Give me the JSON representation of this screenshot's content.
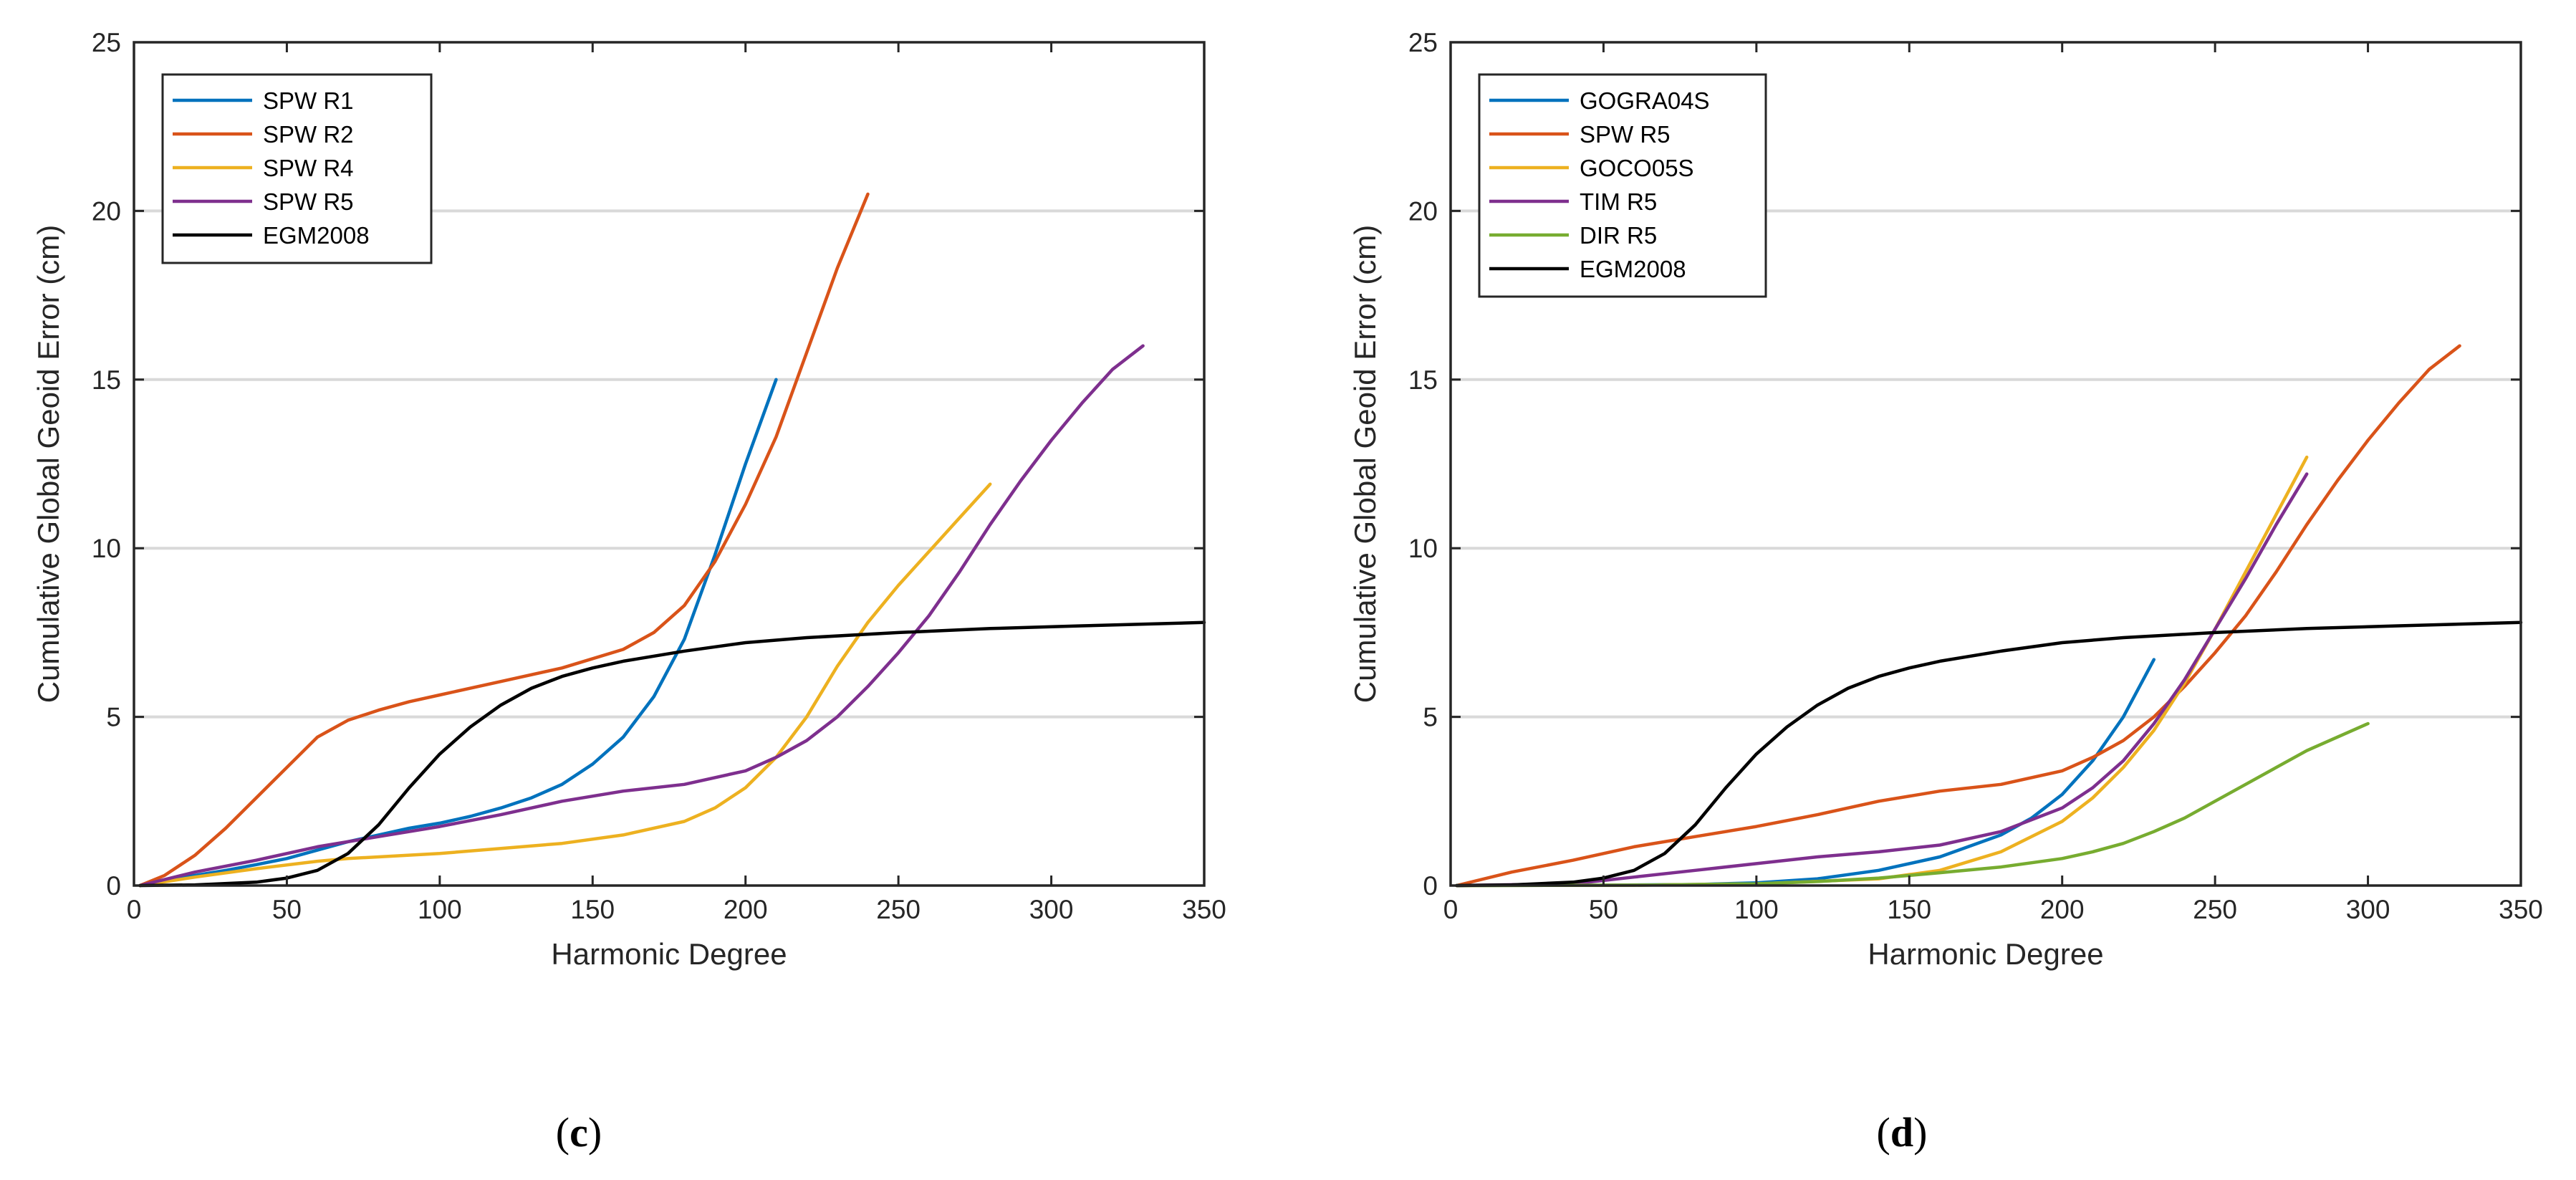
{
  "colors": {
    "blue": "#0072BD",
    "orange": "#D95319",
    "yellow": "#EDB120",
    "purple": "#7E2F8E",
    "green": "#77AC30",
    "black": "#000000",
    "grid": "#d9d9d9"
  },
  "chart_data": [
    {
      "type": "line",
      "panel_label": {
        "open": "(",
        "letter": "c",
        "close": ")"
      },
      "xlabel": "Harmonic Degree",
      "ylabel": "Cumulative Global Geoid Error (cm)",
      "xlim": [
        0,
        350
      ],
      "ylim": [
        0,
        25
      ],
      "xticks": [
        0,
        50,
        100,
        150,
        200,
        250,
        300,
        350
      ],
      "yticks": [
        0,
        5,
        10,
        15,
        20,
        25
      ],
      "grid": "horizontal",
      "legend_position": "top-left",
      "series": [
        {
          "name": "SPW R1",
          "color": "#0072BD",
          "x": [
            2,
            10,
            20,
            30,
            40,
            50,
            60,
            70,
            80,
            90,
            100,
            110,
            120,
            130,
            140,
            150,
            160,
            170,
            180,
            190,
            200,
            210
          ],
          "y": [
            0,
            0.15,
            0.3,
            0.45,
            0.62,
            0.8,
            1.05,
            1.3,
            1.5,
            1.7,
            1.85,
            2.05,
            2.3,
            2.6,
            3.0,
            3.6,
            4.4,
            5.6,
            7.3,
            9.8,
            12.5,
            15.0
          ]
        },
        {
          "name": "SPW R2",
          "color": "#D95319",
          "x": [
            2,
            10,
            20,
            30,
            40,
            50,
            60,
            70,
            80,
            90,
            100,
            120,
            140,
            160,
            170,
            180,
            190,
            200,
            210,
            220,
            230,
            240
          ],
          "y": [
            0,
            0.3,
            0.9,
            1.7,
            2.6,
            3.5,
            4.4,
            4.9,
            5.2,
            5.45,
            5.65,
            6.05,
            6.45,
            7.0,
            7.5,
            8.3,
            9.6,
            11.3,
            13.3,
            15.8,
            18.3,
            20.5
          ]
        },
        {
          "name": "SPW R4",
          "color": "#EDB120",
          "x": [
            2,
            20,
            40,
            60,
            70,
            80,
            100,
            120,
            140,
            160,
            180,
            190,
            200,
            210,
            220,
            230,
            240,
            250,
            260,
            270,
            280
          ],
          "y": [
            0,
            0.25,
            0.5,
            0.72,
            0.8,
            0.85,
            0.95,
            1.1,
            1.25,
            1.5,
            1.9,
            2.3,
            2.9,
            3.8,
            5.0,
            6.5,
            7.8,
            8.9,
            9.9,
            10.9,
            11.9
          ]
        },
        {
          "name": "SPW R5",
          "color": "#7E2F8E",
          "x": [
            2,
            20,
            40,
            60,
            80,
            100,
            120,
            140,
            160,
            180,
            200,
            210,
            220,
            230,
            240,
            250,
            260,
            270,
            280,
            290,
            300,
            310,
            320,
            330
          ],
          "y": [
            0,
            0.4,
            0.75,
            1.15,
            1.45,
            1.75,
            2.1,
            2.5,
            2.8,
            3.0,
            3.4,
            3.8,
            4.3,
            5.0,
            5.9,
            6.9,
            8.0,
            9.3,
            10.7,
            12.0,
            13.2,
            14.3,
            15.3,
            16.0
          ]
        },
        {
          "name": "EGM2008",
          "color": "#000000",
          "x": [
            2,
            20,
            40,
            50,
            60,
            70,
            80,
            90,
            100,
            110,
            120,
            130,
            140,
            150,
            160,
            180,
            200,
            220,
            250,
            280,
            310,
            350
          ],
          "y": [
            0,
            0.02,
            0.1,
            0.22,
            0.45,
            0.95,
            1.8,
            2.9,
            3.9,
            4.7,
            5.35,
            5.85,
            6.2,
            6.45,
            6.65,
            6.95,
            7.2,
            7.35,
            7.5,
            7.62,
            7.7,
            7.8
          ]
        }
      ]
    },
    {
      "type": "line",
      "panel_label": {
        "open": "(",
        "letter": "d",
        "close": ")"
      },
      "xlabel": "Harmonic Degree",
      "ylabel": "Cumulative Global Geoid Error (cm)",
      "xlim": [
        0,
        350
      ],
      "ylim": [
        0,
        25
      ],
      "xticks": [
        0,
        50,
        100,
        150,
        200,
        250,
        300,
        350
      ],
      "yticks": [
        0,
        5,
        10,
        15,
        20,
        25
      ],
      "grid": "horizontal",
      "legend_position": "top-left",
      "series": [
        {
          "name": "GOGRA04S",
          "color": "#0072BD",
          "x": [
            2,
            50,
            80,
            100,
            120,
            140,
            160,
            180,
            190,
            200,
            210,
            220,
            230
          ],
          "y": [
            0,
            0.01,
            0.03,
            0.08,
            0.2,
            0.45,
            0.85,
            1.5,
            2.0,
            2.7,
            3.7,
            5.0,
            6.7
          ]
        },
        {
          "name": "SPW R5",
          "color": "#D95319",
          "x": [
            2,
            20,
            40,
            60,
            80,
            100,
            120,
            140,
            160,
            180,
            200,
            210,
            220,
            230,
            240,
            250,
            260,
            270,
            280,
            290,
            300,
            310,
            320,
            330
          ],
          "y": [
            0,
            0.4,
            0.75,
            1.15,
            1.45,
            1.75,
            2.1,
            2.5,
            2.8,
            3.0,
            3.4,
            3.8,
            4.3,
            5.0,
            5.9,
            6.9,
            8.0,
            9.3,
            10.7,
            12.0,
            13.2,
            14.3,
            15.3,
            16.0
          ]
        },
        {
          "name": "GOCO05S",
          "color": "#EDB120",
          "x": [
            2,
            60,
            100,
            140,
            160,
            180,
            200,
            210,
            220,
            230,
            240,
            250,
            260,
            270,
            280
          ],
          "y": [
            0,
            0.01,
            0.05,
            0.2,
            0.45,
            1.0,
            1.9,
            2.6,
            3.5,
            4.6,
            6.0,
            7.6,
            9.3,
            11.0,
            12.7
          ]
        },
        {
          "name": "TIM R5",
          "color": "#7E2F8E",
          "x": [
            2,
            40,
            60,
            80,
            100,
            120,
            140,
            160,
            180,
            200,
            210,
            220,
            230,
            240,
            250,
            260,
            270,
            280
          ],
          "y": [
            0,
            0.05,
            0.25,
            0.45,
            0.65,
            0.85,
            1.0,
            1.2,
            1.6,
            2.3,
            2.9,
            3.7,
            4.8,
            6.1,
            7.6,
            9.1,
            10.7,
            12.2
          ]
        },
        {
          "name": "DIR R5",
          "color": "#77AC30",
          "x": [
            2,
            60,
            100,
            120,
            140,
            160,
            180,
            200,
            210,
            220,
            230,
            240,
            250,
            260,
            270,
            280,
            290,
            300
          ],
          "y": [
            0,
            0.01,
            0.05,
            0.12,
            0.22,
            0.38,
            0.55,
            0.8,
            1.0,
            1.25,
            1.6,
            2.0,
            2.5,
            3.0,
            3.5,
            4.0,
            4.4,
            4.8
          ]
        },
        {
          "name": "EGM2008",
          "color": "#000000",
          "x": [
            2,
            20,
            40,
            50,
            60,
            70,
            80,
            90,
            100,
            110,
            120,
            130,
            140,
            150,
            160,
            180,
            200,
            220,
            250,
            280,
            310,
            350
          ],
          "y": [
            0,
            0.02,
            0.1,
            0.22,
            0.45,
            0.95,
            1.8,
            2.9,
            3.9,
            4.7,
            5.35,
            5.85,
            6.2,
            6.45,
            6.65,
            6.95,
            7.2,
            7.35,
            7.5,
            7.62,
            7.7,
            7.8
          ]
        }
      ]
    }
  ]
}
